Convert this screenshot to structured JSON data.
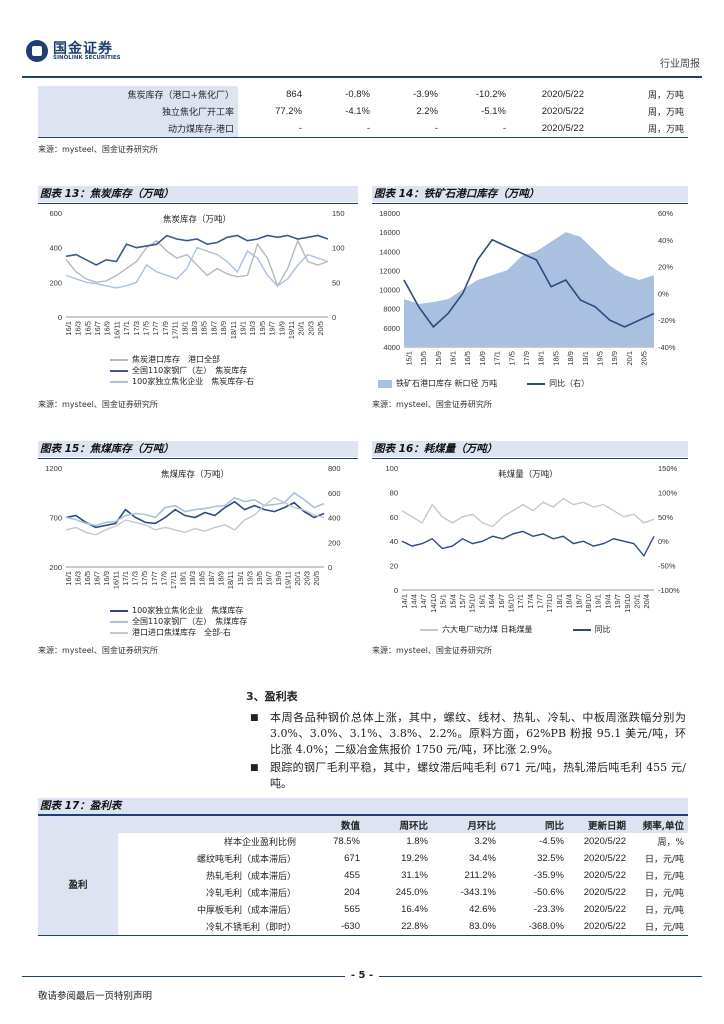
{
  "header": {
    "logo_cn": "国金证券",
    "logo_en": "SINOLINK SECURITIES",
    "report_type": "行业周报"
  },
  "top_table": {
    "rows": [
      {
        "label": "焦炭库存（港口+焦化厂）",
        "value": "864",
        "wow": "-0.8%",
        "mom": "-3.9%",
        "yoy": "-10.2%",
        "date": "2020/5/22",
        "unit": "周，万吨"
      },
      {
        "label": "独立焦化厂开工率",
        "value": "77.2%",
        "wow": "-4.1%",
        "mom": "2.2%",
        "yoy": "-5.1%",
        "date": "2020/5/22",
        "unit": "周，万吨"
      },
      {
        "label": "动力煤库存-港口",
        "value": "-",
        "wow": "-",
        "mom": "-",
        "yoy": "-",
        "date": "2020/5/22",
        "unit": "周，万吨"
      }
    ],
    "source": "来源：mysteel、国金证券研究所"
  },
  "fig13": {
    "title_prefix": "图表 13：",
    "title": "焦炭库存（万吨）",
    "chart_title": "焦炭库存（万吨）",
    "left_ticks": [
      "600",
      "400",
      "200",
      "0"
    ],
    "right_ticks": [
      "150",
      "100",
      "50",
      "0"
    ],
    "x_labels": [
      "16/1",
      "16/3",
      "16/5",
      "16/7",
      "16/9",
      "16/11",
      "17/1",
      "17/3",
      "17/5",
      "17/7",
      "17/9",
      "17/11",
      "18/1",
      "18/3",
      "18/5",
      "18/7",
      "18/9",
      "18/11",
      "19/1",
      "19/3",
      "19/5",
      "19/7",
      "19/9",
      "19/11",
      "20/1",
      "20/3",
      "20/5"
    ],
    "legend": [
      "焦炭港口库存　港口全部",
      "全国110家钢厂（左）　焦炭库存",
      "100家独立焦化企业　焦炭库存-右"
    ],
    "source": "来源：mysteel、国金证券研究所"
  },
  "fig14": {
    "title_prefix": "图表 14：",
    "title": "铁矿石港口库存（万吨）",
    "left_ticks": [
      "18000",
      "16000",
      "14000",
      "12000",
      "10000",
      "8000",
      "6000",
      "4000"
    ],
    "right_ticks": [
      "60%",
      "40%",
      "20%",
      "0%",
      "-20%",
      "-40%"
    ],
    "x_labels": [
      "15/1",
      "15/5",
      "15/9",
      "16/1",
      "16/5",
      "16/9",
      "17/1",
      "17/5",
      "17/9",
      "18/1",
      "18/5",
      "18/9",
      "19/1",
      "19/5",
      "19/9",
      "20/1",
      "20/5"
    ],
    "legend": [
      "铁矿石港口库存 新口径 万吨",
      "同比（右）"
    ],
    "source": "来源：mysteel、国金证券研究所"
  },
  "fig15": {
    "title_prefix": "图表 15：",
    "title": "焦煤库存（万吨）",
    "chart_title": "焦煤库存（万吨）",
    "left_ticks": [
      "1200",
      "700",
      "200"
    ],
    "right_ticks": [
      "800",
      "600",
      "400",
      "200",
      "0"
    ],
    "x_labels": [
      "16/1",
      "16/3",
      "16/5",
      "16/7",
      "16/9",
      "16/11",
      "17/1",
      "17/3",
      "17/5",
      "17/7",
      "17/9",
      "17/11",
      "18/1",
      "18/3",
      "18/5",
      "18/7",
      "18/9",
      "18/11",
      "19/1",
      "19/3",
      "19/5",
      "19/7",
      "19/9",
      "19/11",
      "20/1",
      "20/3",
      "20/5"
    ],
    "legend": [
      "100家独立焦化企业　焦煤库存",
      "全国110家钢厂（左）　焦煤库存",
      "港口进口焦煤库存　全部-右"
    ],
    "source": "来源：mysteel、国金证券研究所"
  },
  "fig16": {
    "title_prefix": "图表 16：",
    "title": "耗煤量（万吨）",
    "chart_title": "耗煤量（万吨）",
    "left_ticks": [
      "100",
      "80",
      "60",
      "40",
      "20",
      "0"
    ],
    "right_ticks": [
      "150%",
      "100%",
      "50%",
      "0%",
      "-50%",
      "-100%"
    ],
    "x_labels": [
      "14/1",
      "14/4",
      "14/7",
      "14/10",
      "15/1",
      "15/4",
      "15/7",
      "15/10",
      "16/1",
      "16/4",
      "16/7",
      "16/10",
      "17/1",
      "17/4",
      "17/7",
      "17/10",
      "18/1",
      "18/4",
      "18/7",
      "18/10",
      "19/1",
      "19/4",
      "19/7",
      "19/10",
      "20/1",
      "20/4"
    ],
    "legend": [
      "六大电厂动力煤 日耗煤量",
      "同比"
    ],
    "source": "来源：mysteel、国金证券研究所"
  },
  "section3": {
    "title": "3、盈利表",
    "bullets": [
      "本周各品种钢价总体上涨，其中，螺纹、线材、热轧、冷轧、中板周涨跌幅分别为 3.0%、3.0%、3.1%、3.8%、2.2%。原料方面，62%PB 粉报 95.1 美元/吨，环比涨 4.0%；二级冶金焦报价 1750 元/吨，环比涨 2.9%。",
      "跟踪的钢厂毛利平稳，其中，螺纹滞后吨毛利 671 元/吨，热轧滞后吨毛利 455 元/吨。"
    ]
  },
  "fig17": {
    "title_prefix": "图表 17：",
    "title": "盈利表",
    "headers": [
      "数值",
      "周环比",
      "月环比",
      "同比",
      "更新日期",
      "频率,单位"
    ],
    "group": "盈利",
    "rows": [
      {
        "label": "样本企业盈利比例",
        "value": "78.5%",
        "wow": "1.8%",
        "mom": "3.2%",
        "yoy": "-4.5%",
        "date": "2020/5/22",
        "unit": "周，%"
      },
      {
        "label": "螺纹吨毛利（成本滞后）",
        "value": "671",
        "wow": "19.2%",
        "mom": "34.4%",
        "yoy": "32.5%",
        "date": "2020/5/22",
        "unit": "日，元/吨"
      },
      {
        "label": "热轧毛利（成本滞后）",
        "value": "455",
        "wow": "31.1%",
        "mom": "211.2%",
        "yoy": "-35.9%",
        "date": "2020/5/22",
        "unit": "日，元/吨"
      },
      {
        "label": "冷轧毛利（成本滞后）",
        "value": "204",
        "wow": "245.0%",
        "mom": "-343.1%",
        "yoy": "-50.6%",
        "date": "2020/5/22",
        "unit": "日，元/吨"
      },
      {
        "label": "中厚板毛利（成本滞后）",
        "value": "565",
        "wow": "16.4%",
        "mom": "42.6%",
        "yoy": "-23.3%",
        "date": "2020/5/22",
        "unit": "日，元/吨"
      },
      {
        "label": "冷轧不锈毛利（即时）",
        "value": "-630",
        "wow": "22.8%",
        "mom": "83.0%",
        "yoy": "-368.0%",
        "date": "2020/5/22",
        "unit": "日，元/吨"
      }
    ]
  },
  "footer": {
    "page": "- 5 -",
    "note": "敬请参阅最后一页特别声明"
  },
  "chart_data": [
    {
      "type": "line",
      "title": "焦炭库存（万吨）",
      "series": [
        {
          "name": "焦炭港口库存 港口全部",
          "axis": "right",
          "values": [
            83,
            65,
            55,
            50,
            52,
            60,
            70,
            80,
            100,
            110,
            95,
            85,
            90,
            75,
            60,
            70,
            62,
            58,
            60,
            105,
            85,
            45,
            70,
            110,
            80,
            75,
            80
          ]
        },
        {
          "name": "全国110家钢厂（左） 焦炭库存",
          "axis": "left",
          "values": [
            350,
            360,
            330,
            300,
            330,
            320,
            420,
            400,
            410,
            420,
            470,
            450,
            440,
            450,
            420,
            430,
            460,
            470,
            440,
            450,
            470,
            460,
            470,
            450,
            460,
            470,
            450
          ]
        },
        {
          "name": "100家独立焦化企业 焦炭库存-右",
          "axis": "right",
          "values": [
            60,
            55,
            50,
            48,
            45,
            42,
            45,
            50,
            75,
            65,
            60,
            55,
            70,
            100,
            95,
            90,
            80,
            65,
            95,
            85,
            60,
            45,
            55,
            75,
            90,
            85,
            80
          ]
        }
      ],
      "ylim_left": [
        0,
        600
      ],
      "ylim_right": [
        0,
        150
      ]
    },
    {
      "type": "area",
      "title": "铁矿石港口库存（万吨）",
      "series": [
        {
          "name": "铁矿石港口库存 新口径 万吨",
          "axis": "left",
          "values": [
            9000,
            8500,
            8700,
            9000,
            10000,
            11000,
            11500,
            12000,
            13500,
            14000,
            15000,
            16000,
            15500,
            14000,
            12500,
            11500,
            11000,
            11500
          ]
        },
        {
          "name": "同比（右）",
          "axis": "right",
          "values": [
            10,
            -10,
            -25,
            -15,
            0,
            25,
            40,
            35,
            30,
            25,
            5,
            10,
            -5,
            -10,
            -20,
            -25,
            -20,
            -15
          ]
        }
      ],
      "ylim_left": [
        4000,
        18000
      ],
      "ylim_right": [
        -40,
        60
      ]
    },
    {
      "type": "line",
      "title": "焦煤库存（万吨）",
      "series": [
        {
          "name": "100家独立焦化企业 焦煤库存",
          "axis": "left",
          "values": [
            700,
            720,
            650,
            600,
            620,
            640,
            780,
            700,
            650,
            640,
            700,
            780,
            720,
            700,
            750,
            720,
            800,
            860,
            780,
            820,
            780,
            760,
            800,
            850,
            760,
            700,
            740
          ]
        },
        {
          "name": "全国110家钢厂（左） 焦煤库存",
          "axis": "left",
          "values": [
            700,
            680,
            640,
            620,
            650,
            660,
            720,
            740,
            730,
            700,
            800,
            820,
            760,
            780,
            790,
            810,
            820,
            900,
            860,
            880,
            820,
            830,
            850,
            950,
            880,
            800,
            840
          ]
        },
        {
          "name": "港口进口焦煤库存 全部-右",
          "axis": "right",
          "values": [
            300,
            320,
            280,
            260,
            300,
            330,
            380,
            360,
            340,
            300,
            320,
            300,
            280,
            310,
            290,
            320,
            340,
            300,
            380,
            420,
            500,
            560,
            520,
            480,
            460,
            420,
            400
          ]
        }
      ],
      "ylim_left": [
        200,
        1200
      ],
      "ylim_right": [
        0,
        800
      ]
    },
    {
      "type": "line",
      "title": "耗煤量（万吨）",
      "series": [
        {
          "name": "六大电厂动力煤 日耗煤量",
          "axis": "left",
          "values": [
            65,
            60,
            55,
            70,
            60,
            55,
            60,
            62,
            55,
            52,
            60,
            65,
            70,
            65,
            72,
            68,
            75,
            70,
            72,
            68,
            70,
            65,
            60,
            62,
            55,
            58
          ]
        },
        {
          "name": "同比",
          "axis": "right",
          "values": [
            0,
            -10,
            -5,
            5,
            -15,
            -10,
            5,
            -5,
            0,
            10,
            5,
            15,
            20,
            10,
            15,
            5,
            10,
            -5,
            0,
            -10,
            -5,
            5,
            0,
            -5,
            -30,
            10
          ]
        }
      ],
      "ylim_left": [
        0,
        100
      ],
      "ylim_right": [
        -100,
        150
      ]
    }
  ]
}
